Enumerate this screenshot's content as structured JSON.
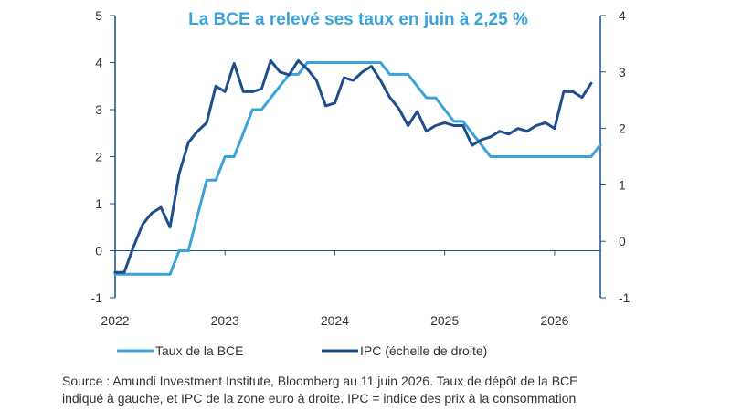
{
  "chart_data": {
    "type": "line",
    "title": "La BCE a relevé ses taux en juin à 2,25 %",
    "x_ticks": [
      "2022",
      "2023",
      "2024",
      "2025",
      "2026"
    ],
    "y_left": {
      "ticks": [
        "5",
        "4",
        "3",
        "2",
        "1",
        "0",
        "-1"
      ],
      "ylim": [
        -1,
        5
      ]
    },
    "y_right": {
      "ticks": [
        "4",
        "3",
        "2",
        "1",
        "0",
        "-1"
      ],
      "ylim": [
        -1,
        4
      ]
    },
    "grid": false,
    "legend_position": "bottom",
    "series": [
      {
        "name": "Taux de la BCE",
        "axis": "left",
        "color": "#3aa3d9",
        "step": true,
        "points": [
          [
            "2022-01",
            -0.5
          ],
          [
            "2022-07",
            -0.5
          ],
          [
            "2022-08",
            0
          ],
          [
            "2022-09",
            0
          ],
          [
            "2022-10",
            0.75
          ],
          [
            "2022-11",
            1.5
          ],
          [
            "2022-12",
            1.5
          ],
          [
            "2023-01",
            2.0
          ],
          [
            "2023-02",
            2.0
          ],
          [
            "2023-03",
            2.5
          ],
          [
            "2023-04",
            3.0
          ],
          [
            "2023-05",
            3.0
          ],
          [
            "2023-06",
            3.25
          ],
          [
            "2023-07",
            3.5
          ],
          [
            "2023-08",
            3.75
          ],
          [
            "2023-09",
            3.75
          ],
          [
            "2023-10",
            4.0
          ],
          [
            "2024-06",
            4.0
          ],
          [
            "2024-07",
            3.75
          ],
          [
            "2024-09",
            3.75
          ],
          [
            "2024-10",
            3.5
          ],
          [
            "2024-11",
            3.25
          ],
          [
            "2024-12",
            3.25
          ],
          [
            "2025-01",
            3.0
          ],
          [
            "2025-02",
            2.75
          ],
          [
            "2025-03",
            2.75
          ],
          [
            "2025-04",
            2.5
          ],
          [
            "2025-05",
            2.25
          ],
          [
            "2025-06",
            2.0
          ],
          [
            "2026-05",
            2.0
          ],
          [
            "2026-06",
            2.25
          ]
        ]
      },
      {
        "name": "IPC (échelle de droite)",
        "axis": "right",
        "color": "#1f4e8c",
        "points": [
          [
            "2022-01",
            -0.55
          ],
          [
            "2022-02",
            -0.55
          ],
          [
            "2022-03",
            -0.1
          ],
          [
            "2022-04",
            0.3
          ],
          [
            "2022-05",
            0.5
          ],
          [
            "2022-06",
            0.6
          ],
          [
            "2022-07",
            0.25
          ],
          [
            "2022-08",
            1.2
          ],
          [
            "2022-09",
            1.75
          ],
          [
            "2022-10",
            1.95
          ],
          [
            "2022-11",
            2.1
          ],
          [
            "2022-12",
            2.75
          ],
          [
            "2023-01",
            2.65
          ],
          [
            "2023-02",
            3.15
          ],
          [
            "2023-03",
            2.65
          ],
          [
            "2023-04",
            2.65
          ],
          [
            "2023-05",
            2.7
          ],
          [
            "2023-06",
            3.2
          ],
          [
            "2023-07",
            3.0
          ],
          [
            "2023-08",
            2.95
          ],
          [
            "2023-09",
            3.2
          ],
          [
            "2023-10",
            3.05
          ],
          [
            "2023-11",
            2.85
          ],
          [
            "2023-12",
            2.4
          ],
          [
            "2024-01",
            2.45
          ],
          [
            "2024-02",
            2.9
          ],
          [
            "2024-03",
            2.85
          ],
          [
            "2024-04",
            3.0
          ],
          [
            "2024-05",
            3.1
          ],
          [
            "2024-06",
            2.85
          ],
          [
            "2024-07",
            2.55
          ],
          [
            "2024-08",
            2.35
          ],
          [
            "2024-09",
            2.05
          ],
          [
            "2024-10",
            2.3
          ],
          [
            "2024-11",
            1.95
          ],
          [
            "2024-12",
            2.05
          ],
          [
            "2025-01",
            2.1
          ],
          [
            "2025-02",
            2.05
          ],
          [
            "2025-03",
            2.05
          ],
          [
            "2025-04",
            1.7
          ],
          [
            "2025-05",
            1.8
          ],
          [
            "2025-06",
            1.85
          ],
          [
            "2025-07",
            1.95
          ],
          [
            "2025-08",
            1.9
          ],
          [
            "2025-09",
            2.0
          ],
          [
            "2025-10",
            1.95
          ],
          [
            "2025-11",
            2.05
          ],
          [
            "2025-12",
            2.1
          ],
          [
            "2026-01",
            2.0
          ],
          [
            "2026-02",
            2.65
          ],
          [
            "2026-03",
            2.65
          ],
          [
            "2026-04",
            2.55
          ],
          [
            "2026-05",
            2.8
          ]
        ]
      }
    ],
    "source_lines": [
      "Source : Amundi Investment Institute, Bloomberg au 11 juin 2026. Taux de dépôt de la BCE",
      "indiqué à gauche, et IPC de la zone euro à droite. IPC = indice des prix à la consommation"
    ]
  }
}
